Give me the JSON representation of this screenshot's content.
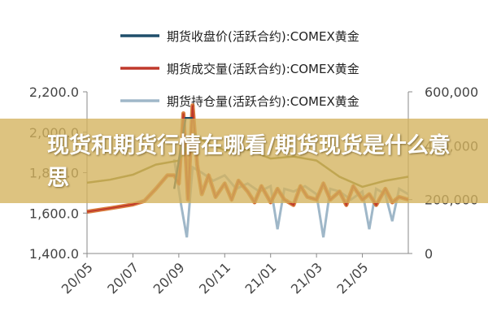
{
  "overlay": {
    "title": "现货和期货行情在哪看/期货现货是什么意思"
  },
  "chart_data": {
    "type": "line",
    "legend_position": "top",
    "grid": false,
    "series": [
      {
        "name": "期货收盘价(活跃合约):COMEX黄金",
        "axis": "left",
        "color": "#1f4e6b"
      },
      {
        "name": "期货成交量(活跃合约):COMEX黄金",
        "axis": "right",
        "color": "#c0392b"
      },
      {
        "name": "期货持仓量(活跃合约):COMEX黄金",
        "axis": "right",
        "color": "#9fb7c8"
      }
    ],
    "y_left": {
      "ticks": [
        "2,200.0",
        "2,000.0",
        "1,800.0",
        "1,600.0",
        "1,400.0"
      ],
      "ylim": [
        1400,
        2200
      ]
    },
    "y_right": {
      "ticks": [
        "600,000",
        "400,000",
        "200,000",
        "0"
      ],
      "ylim": [
        0,
        600000
      ]
    },
    "x_ticks": [
      "20/05",
      "20/07",
      "20/09",
      "20/11",
      "21/01",
      "21/03",
      "21/05"
    ],
    "x_range": [
      0,
      14
    ],
    "olive_line": {
      "color": "#7a7a2a",
      "points": [
        [
          0,
          1750
        ],
        [
          1,
          1765
        ],
        [
          2,
          1790
        ],
        [
          3,
          1840
        ],
        [
          4,
          1860
        ],
        [
          4.7,
          1990
        ],
        [
          5,
          1960
        ],
        [
          6,
          1910
        ],
        [
          7,
          1915
        ],
        [
          8,
          1870
        ],
        [
          9,
          1880
        ],
        [
          10,
          1860
        ],
        [
          11,
          1780
        ],
        [
          12,
          1730
        ],
        [
          13,
          1760
        ],
        [
          14,
          1780
        ]
      ]
    },
    "close_series_points": [
      [
        3.8,
        1720
      ],
      [
        4.3,
        2070
      ],
      [
        4.6,
        2070
      ]
    ],
    "volume_points": [
      [
        0,
        155000
      ],
      [
        1,
        168000
      ],
      [
        2,
        182000
      ],
      [
        2.5,
        195000
      ],
      [
        3,
        240000
      ],
      [
        3.5,
        290000
      ],
      [
        3.8,
        290000
      ],
      [
        4,
        260000
      ],
      [
        4.2,
        520000
      ],
      [
        4.4,
        200000
      ],
      [
        4.6,
        550000
      ],
      [
        4.8,
        330000
      ],
      [
        5,
        220000
      ],
      [
        5.3,
        290000
      ],
      [
        5.6,
        210000
      ],
      [
        6,
        260000
      ],
      [
        6.3,
        200000
      ],
      [
        6.6,
        270000
      ],
      [
        7,
        230000
      ],
      [
        7.3,
        190000
      ],
      [
        7.6,
        250000
      ],
      [
        8,
        190000
      ],
      [
        8.3,
        240000
      ],
      [
        8.6,
        200000
      ],
      [
        9,
        180000
      ],
      [
        9.3,
        250000
      ],
      [
        9.6,
        210000
      ],
      [
        10,
        200000
      ],
      [
        10.3,
        260000
      ],
      [
        10.6,
        200000
      ],
      [
        11,
        230000
      ],
      [
        11.3,
        180000
      ],
      [
        11.6,
        250000
      ],
      [
        12,
        200000
      ],
      [
        12.3,
        220000
      ],
      [
        12.6,
        180000
      ],
      [
        13,
        240000
      ],
      [
        13.3,
        190000
      ],
      [
        13.6,
        210000
      ],
      [
        14,
        200000
      ]
    ],
    "open_interest_points": [
      [
        3.8,
        350000
      ],
      [
        4.1,
        180000
      ],
      [
        4.35,
        60000
      ],
      [
        4.6,
        320000
      ],
      [
        5,
        300000
      ],
      [
        5.5,
        270000
      ],
      [
        6,
        290000
      ],
      [
        6.5,
        240000
      ],
      [
        7,
        260000
      ],
      [
        7.5,
        230000
      ],
      [
        8,
        250000
      ],
      [
        8.3,
        90000
      ],
      [
        8.6,
        240000
      ],
      [
        9,
        230000
      ],
      [
        9.5,
        250000
      ],
      [
        10,
        220000
      ],
      [
        10.3,
        60000
      ],
      [
        10.6,
        240000
      ],
      [
        11,
        230000
      ],
      [
        11.5,
        200000
      ],
      [
        12,
        230000
      ],
      [
        12.3,
        90000
      ],
      [
        12.6,
        240000
      ],
      [
        13,
        220000
      ],
      [
        13.3,
        120000
      ],
      [
        13.6,
        240000
      ],
      [
        14,
        220000
      ]
    ]
  }
}
